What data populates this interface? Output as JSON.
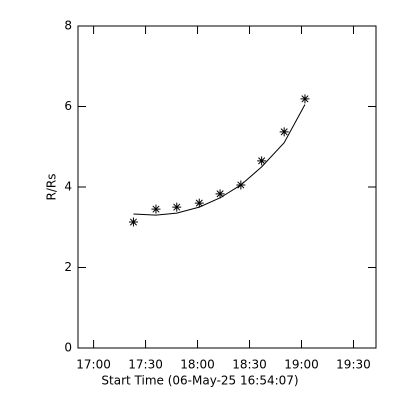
{
  "chart_data": {
    "type": "scatter",
    "xlabel": "Start Time (06-May-25 16:54:07)",
    "ylabel": "R/Rs",
    "xlim": [
      1011,
      1183
    ],
    "xticks": [
      {
        "value": 1020,
        "label": "17:00"
      },
      {
        "value": 1050,
        "label": "17:30"
      },
      {
        "value": 1080,
        "label": "18:00"
      },
      {
        "value": 1110,
        "label": "18:30"
      },
      {
        "value": 1140,
        "label": "19:00"
      },
      {
        "value": 1170,
        "label": "19:30"
      }
    ],
    "ylim": [
      0,
      8
    ],
    "yticks": [
      0,
      2,
      4,
      6,
      8
    ],
    "series": [
      {
        "type": "scatter",
        "marker": "asterisk",
        "color": "#000000",
        "x": [
          1043,
          1056,
          1068,
          1081,
          1093,
          1105,
          1117,
          1130,
          1142
        ],
        "values": [
          3.13,
          3.45,
          3.5,
          3.6,
          3.83,
          4.05,
          4.65,
          5.37,
          6.19
        ]
      },
      {
        "type": "line",
        "color": "#000000",
        "x": [
          1043,
          1056,
          1068,
          1081,
          1093,
          1105,
          1117,
          1130,
          1142
        ],
        "values": [
          3.33,
          3.3,
          3.35,
          3.5,
          3.73,
          4.05,
          4.5,
          5.1,
          6.05
        ]
      }
    ]
  }
}
